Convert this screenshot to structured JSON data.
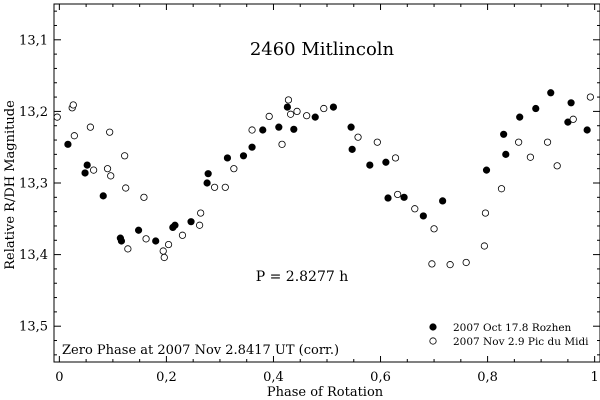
{
  "chart_data": {
    "type": "scatter",
    "title": "2460 Mitlincoln",
    "xlabel": "Phase of Rotation",
    "ylabel": "Relative R/DH Magnitude",
    "xlim": [
      -0.01,
      1.01
    ],
    "ylim": [
      13.05,
      13.55
    ],
    "y_inverted": true,
    "xticks": [
      0,
      0.2,
      0.4,
      0.6,
      0.8,
      1
    ],
    "xtick_labels": [
      "0",
      "0,2",
      "0,4",
      "0,6",
      "0,8",
      "1"
    ],
    "yticks": [
      13.1,
      13.2,
      13.3,
      13.4,
      13.5
    ],
    "ytick_labels": [
      "13,1",
      "13,2",
      "13,3",
      "13,4",
      "13,5"
    ],
    "annotations": {
      "period": "P = 2.8277 h",
      "zero_phase": "Zero Phase at 2007 Nov 2.8417 UT (corr.)"
    },
    "legend_position": "bottom-right",
    "series": [
      {
        "name": "2007 Oct 17.8 Rozhen",
        "marker": "filled-circle",
        "x": [
          0.016,
          0.048,
          0.052,
          0.082,
          0.114,
          0.116,
          0.148,
          0.18,
          0.212,
          0.216,
          0.246,
          0.276,
          0.278,
          0.314,
          0.344,
          0.36,
          0.38,
          0.41,
          0.426,
          0.438,
          0.478,
          0.512,
          0.545,
          0.547,
          0.58,
          0.61,
          0.614,
          0.644,
          0.68,
          0.716,
          0.798,
          0.83,
          0.834,
          0.86,
          0.89,
          0.918,
          0.95,
          0.956,
          0.986
        ],
        "y": [
          13.246,
          13.286,
          13.275,
          13.318,
          13.377,
          13.381,
          13.366,
          13.381,
          13.362,
          13.359,
          13.354,
          13.3,
          13.287,
          13.265,
          13.262,
          13.25,
          13.226,
          13.222,
          13.194,
          13.225,
          13.208,
          13.194,
          13.222,
          13.253,
          13.275,
          13.271,
          13.321,
          13.32,
          13.346,
          13.325,
          13.282,
          13.232,
          13.26,
          13.208,
          13.196,
          13.174,
          13.215,
          13.188,
          13.226
        ]
      },
      {
        "name": "2007 Nov 2.9 Pic du Midi",
        "marker": "open-circle",
        "x": [
          -0.004,
          0.024,
          0.026,
          0.028,
          0.058,
          0.064,
          0.09,
          0.094,
          0.096,
          0.122,
          0.124,
          0.128,
          0.158,
          0.162,
          0.194,
          0.196,
          0.204,
          0.23,
          0.262,
          0.264,
          0.29,
          0.31,
          0.326,
          0.36,
          0.392,
          0.416,
          0.428,
          0.432,
          0.444,
          0.462,
          0.494,
          0.558,
          0.594,
          0.628,
          0.632,
          0.664,
          0.696,
          0.7,
          0.73,
          0.76,
          0.794,
          0.796,
          0.826,
          0.858,
          0.88,
          0.912,
          0.93,
          0.96,
          0.992
        ],
        "y": [
          13.208,
          13.195,
          13.191,
          13.234,
          13.222,
          13.282,
          13.28,
          13.229,
          13.29,
          13.262,
          13.307,
          13.392,
          13.32,
          13.378,
          13.395,
          13.404,
          13.386,
          13.373,
          13.359,
          13.342,
          13.306,
          13.306,
          13.28,
          13.226,
          13.207,
          13.246,
          13.184,
          13.204,
          13.2,
          13.206,
          13.196,
          13.236,
          13.243,
          13.265,
          13.316,
          13.336,
          13.413,
          13.364,
          13.414,
          13.411,
          13.388,
          13.342,
          13.308,
          13.243,
          13.264,
          13.243,
          13.276,
          13.211,
          13.18
        ]
      }
    ]
  }
}
